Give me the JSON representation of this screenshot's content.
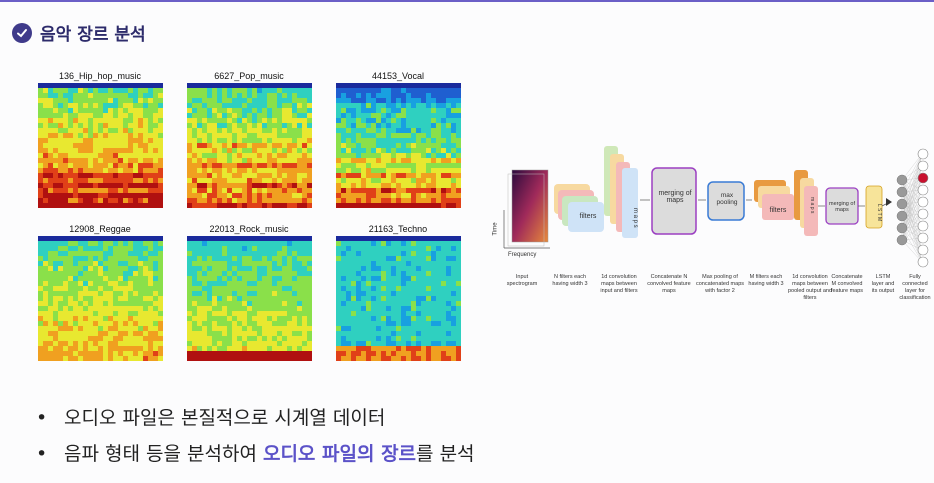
{
  "title": "음악 장르 분석",
  "spectrograms": [
    {
      "label": "136_Hip_hop_music",
      "style": "hiphop"
    },
    {
      "label": "6627_Pop_music",
      "style": "pop"
    },
    {
      "label": "44153_Vocal",
      "style": "vocal"
    },
    {
      "label": "12908_Reggae",
      "style": "reggae"
    },
    {
      "label": "22013_Rock_music",
      "style": "rock"
    },
    {
      "label": "21163_Techno",
      "style": "techno"
    }
  ],
  "architecture": {
    "axis_time": "Time",
    "axis_frequency": "Frequency",
    "box_filters1": "filters",
    "box_maps1": "m a p s",
    "box_merging1": "merging of maps",
    "box_maxpool": "max pooling",
    "box_filters2": "filters",
    "box_maps2": "m a p s",
    "box_merging2": "merging of maps",
    "box_lstm": "L S T M",
    "captions": [
      "Input spectrogram",
      "N filters each having width 3",
      "1d convolution maps between input and filters",
      "Concatenate N convolved feature maps",
      "Max pooling of concatenated maps with factor 2",
      "M filters each having width 3",
      "1d convolution maps between pooled output and filters",
      "Concatenate M convolved feature maps",
      "LSTM layer and its output",
      "Fully connected layer for classification"
    ]
  },
  "bullets": {
    "b1": "오디오 파일은 본질적으로 시계열 데이터",
    "b2_pre": "음파 형태 등을 분석하여 ",
    "b2_hl": "오디오 파일의 장르",
    "b2_post": "를 분석"
  },
  "colors": {
    "accent": "#5b52c8",
    "title": "#2d2b6b"
  }
}
